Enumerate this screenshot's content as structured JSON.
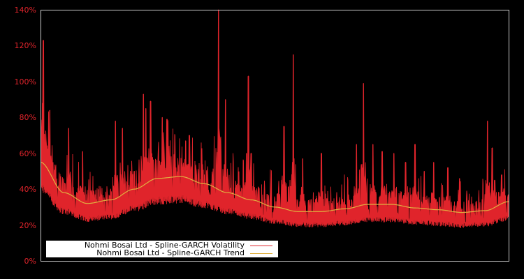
{
  "chart_data": {
    "type": "line",
    "title": "",
    "xlabel": "",
    "ylabel": "",
    "ylim": [
      0,
      140
    ],
    "y_ticks": [
      "0%",
      "20%",
      "40%",
      "60%",
      "80%",
      "100%",
      "120%",
      "140%"
    ],
    "y_tick_values": [
      0,
      20,
      40,
      60,
      80,
      100,
      120,
      140
    ],
    "x_ticks": [],
    "grid": false,
    "legend_position": "lower left",
    "background": "#000000",
    "axis_color": "#cccccc",
    "tick_label_color": "#e0242b",
    "series": [
      {
        "name": "Nohmi Bosai Ltd - Spline-GARCH Volatility",
        "color": "#e0242b",
        "description": "Daily conditional volatility, noisy with spikes",
        "x_frac_peaks": [
          0.004,
          0.006,
          0.012,
          0.02,
          0.06,
          0.09,
          0.16,
          0.175,
          0.22,
          0.225,
          0.235,
          0.26,
          0.27,
          0.31,
          0.318,
          0.38,
          0.395,
          0.44,
          0.444,
          0.45,
          0.52,
          0.54,
          0.56,
          0.6,
          0.675,
          0.69,
          0.71,
          0.73,
          0.755,
          0.78,
          0.8,
          0.82,
          0.84,
          0.87,
          0.895,
          0.955,
          0.965,
          0.97,
          0.985
        ],
        "peak_values": [
          88,
          123,
          65,
          84,
          74,
          61,
          78,
          74,
          93,
          85,
          89,
          80,
          79,
          67,
          70,
          140,
          90,
          60,
          103,
          60,
          75,
          115,
          57,
          60,
          65,
          99,
          65,
          61,
          60,
          55,
          65,
          50,
          55,
          52,
          46,
          78,
          63,
          45,
          48
        ]
      },
      {
        "name": "Nohmi Bosai Ltd - Spline-GARCH Trend",
        "color": "#e0b040",
        "description": "Smooth long-run trend component",
        "x_frac": [
          0.0,
          0.05,
          0.1,
          0.15,
          0.2,
          0.25,
          0.3,
          0.35,
          0.4,
          0.45,
          0.5,
          0.55,
          0.6,
          0.65,
          0.7,
          0.75,
          0.8,
          0.85,
          0.9,
          0.95,
          1.0
        ],
        "values": [
          55,
          38,
          32,
          34,
          40,
          46,
          47,
          43,
          38,
          34,
          30,
          27.5,
          27.5,
          29,
          31.5,
          31.5,
          29.5,
          28.5,
          27,
          28,
          33
        ]
      }
    ]
  },
  "legend": {
    "items": [
      {
        "label": "Nohmi Bosai Ltd - Spline-GARCH Volatility",
        "color": "#e0242b"
      },
      {
        "label": "Nohmi Bosai Ltd - Spline-GARCH Trend",
        "color": "#e0b040"
      }
    ]
  }
}
